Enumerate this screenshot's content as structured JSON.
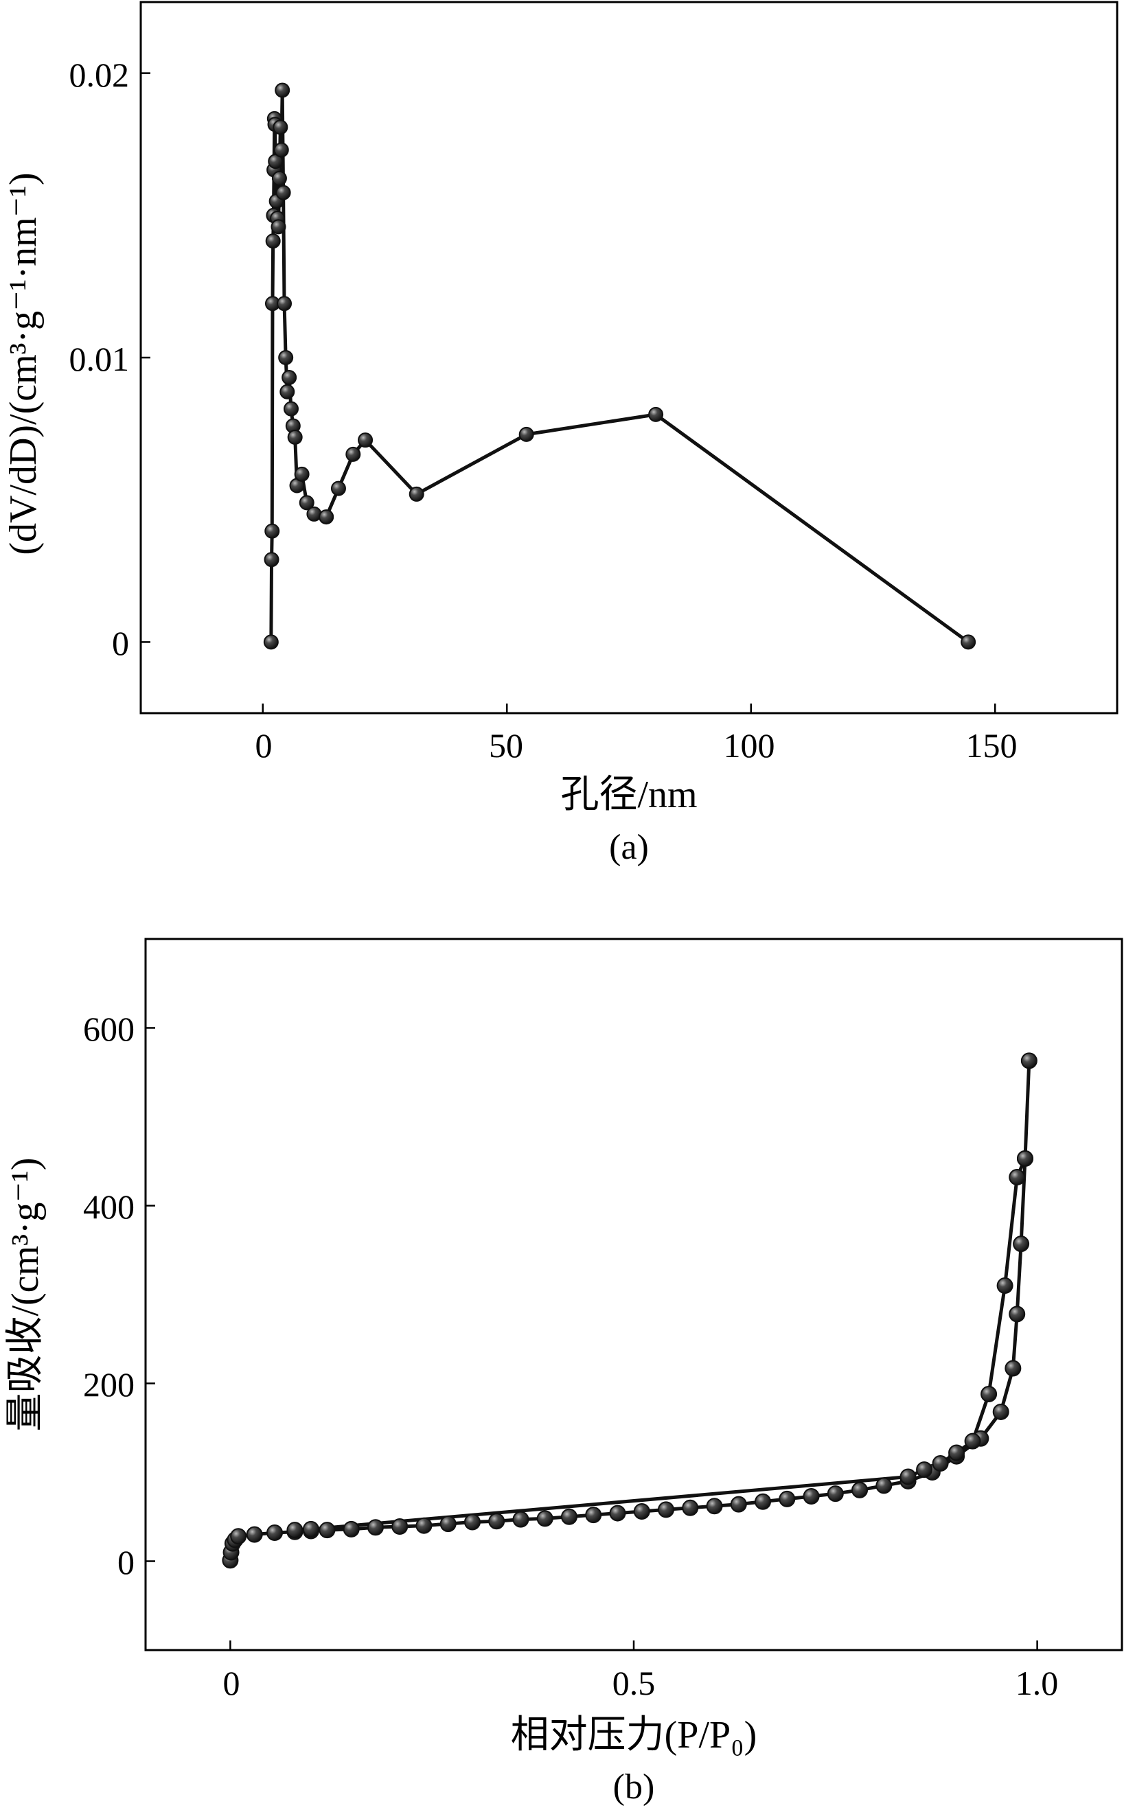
{
  "chart_data": [
    {
      "type": "line",
      "caption": "(a)",
      "xlabel": "孔径/nm",
      "ylabel": "(dV/dD)/(cm³·g⁻¹·nm⁻¹)",
      "xlim": [
        -25,
        175
      ],
      "ylim": [
        -0.0025,
        0.0225
      ],
      "xticks": [
        0,
        50,
        100,
        150
      ],
      "xtick_labels": [
        "0",
        "50",
        "100",
        "150"
      ],
      "yticks": [
        0,
        0.01,
        0.02
      ],
      "ytick_labels": [
        "0",
        "0.01",
        "0.02"
      ],
      "grid": false,
      "series": [
        {
          "x": [
            1.7,
            1.8,
            1.9,
            2.0,
            2.1,
            2.2,
            2.3,
            2.4,
            2.5,
            2.6,
            2.8,
            3.0,
            3.2,
            3.4,
            3.6,
            3.8,
            4.0,
            4.2,
            4.4,
            4.7,
            5.0,
            5.4,
            5.8,
            6.2,
            6.6,
            7.0,
            8.0,
            9.0,
            10.5,
            13.0,
            15.5,
            18.5,
            21.0,
            31.5,
            54.0,
            80.5,
            144.5
          ],
          "y": [
            0.0,
            0.0029,
            0.0039,
            0.0119,
            0.0141,
            0.015,
            0.0166,
            0.0184,
            0.0182,
            0.0169,
            0.0155,
            0.0149,
            0.0146,
            0.0163,
            0.0181,
            0.0173,
            0.0194,
            0.0158,
            0.0119,
            0.01,
            0.0088,
            0.0093,
            0.0082,
            0.0076,
            0.0072,
            0.0055,
            0.0059,
            0.0049,
            0.0045,
            0.0044,
            0.0054,
            0.0066,
            0.0071,
            0.0052,
            0.0073,
            0.008,
            0.0
          ]
        }
      ]
    },
    {
      "type": "line",
      "caption": "(b)",
      "xlabel": "相对压力(P/P₀)",
      "ylabel": "量吸收/(cm³·g⁻¹)",
      "xlim": [
        -0.105,
        1.105
      ],
      "ylim": [
        -100,
        700
      ],
      "xticks": [
        0,
        0.5,
        1.0
      ],
      "xtick_labels": [
        "0",
        "0.5",
        "1.0"
      ],
      "yticks": [
        0,
        200,
        400,
        600
      ],
      "ytick_labels": [
        "0",
        "200",
        "400",
        "600"
      ],
      "grid": false,
      "series": [
        {
          "x": [
            0.0,
            0.001,
            0.003,
            0.006,
            0.01,
            0.03,
            0.055,
            0.08,
            0.1,
            0.12,
            0.15,
            0.18,
            0.21,
            0.24,
            0.27,
            0.3,
            0.33,
            0.36,
            0.39,
            0.42,
            0.45,
            0.48,
            0.51,
            0.54,
            0.57,
            0.6,
            0.63,
            0.66,
            0.69,
            0.72,
            0.75,
            0.78,
            0.81,
            0.84,
            0.87,
            0.9,
            0.93,
            0.955,
            0.97,
            0.975,
            0.98,
            0.985,
            0.99
          ],
          "y": [
            1,
            10,
            20,
            24,
            28,
            30,
            32,
            33,
            34,
            35,
            36,
            38,
            39,
            40,
            42,
            44,
            45,
            47,
            48,
            50,
            52,
            54,
            56,
            58,
            60,
            62,
            64,
            67,
            70,
            73,
            76,
            80,
            85,
            90,
            100,
            118,
            138,
            168,
            217,
            278,
            357,
            453,
            563
          ]
        },
        {
          "x": [
            0.08,
            0.1,
            0.84,
            0.86,
            0.88,
            0.9,
            0.92,
            0.94,
            0.96,
            0.975,
            0.985
          ],
          "y": [
            35,
            36,
            95,
            103,
            110,
            122,
            135,
            188,
            310,
            432,
            453
          ]
        }
      ]
    }
  ]
}
